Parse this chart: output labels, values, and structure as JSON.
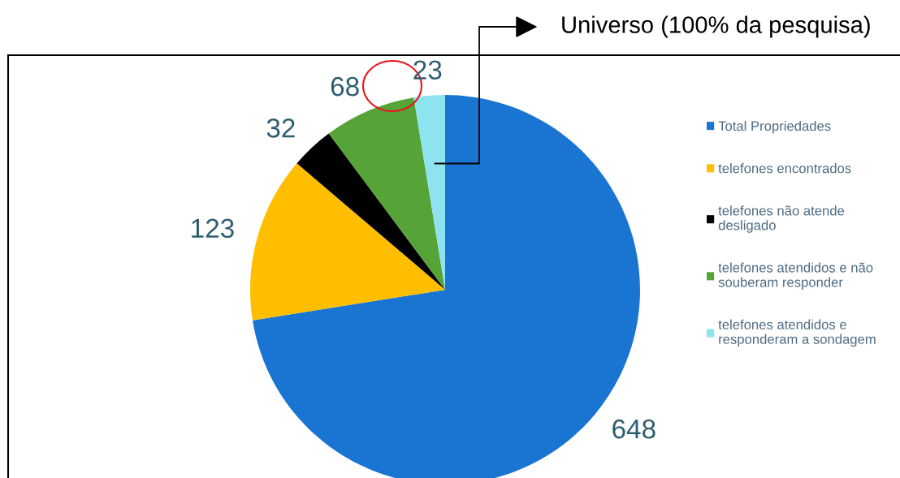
{
  "chart_data": {
    "type": "pie",
    "categories": [
      "Total Propriedades",
      "telefones encontrados",
      "telefones não atende\ndesligado",
      "telefones atendidos e não\nsouberam responder",
      "telefones atendidos e\nresponderam a sondagem"
    ],
    "values": [
      648,
      123,
      32,
      68,
      23
    ],
    "colors": [
      "#1a75d2",
      "#ffbf00",
      "#000000",
      "#56a337",
      "#8ee3f0"
    ],
    "data_labels": true,
    "legend": "right",
    "annotations": [
      "Universo (100% da pesquisa)"
    ]
  }
}
